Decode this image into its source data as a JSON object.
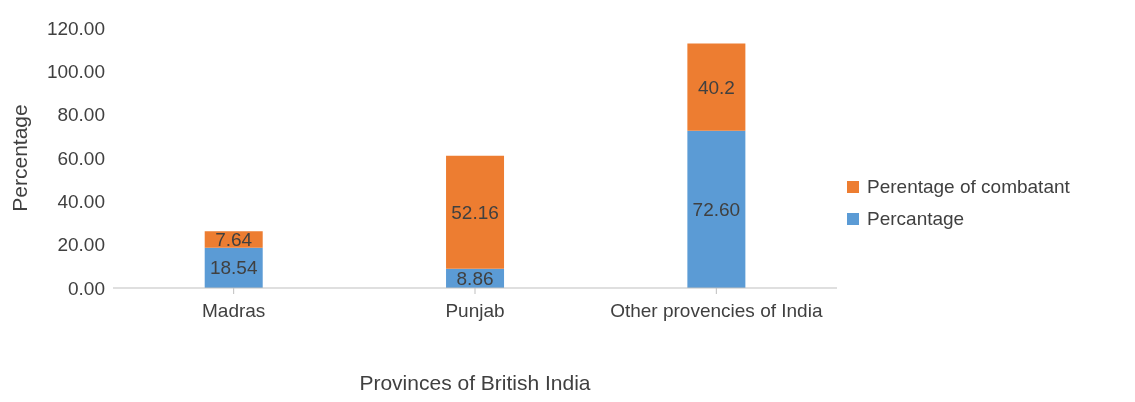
{
  "chart_data": {
    "type": "bar",
    "stacked": true,
    "xlabel": "Provinces of British India",
    "ylabel": "Percentage",
    "categories": [
      "Madras",
      "Punjab",
      "Other provencies of India"
    ],
    "series": [
      {
        "name": "Percantage",
        "color": "#5b9bd5",
        "values": [
          18.54,
          8.86,
          72.6
        ],
        "value_labels": [
          "18.54",
          "8.86",
          "72.60"
        ]
      },
      {
        "name": "Perentage of combatant",
        "color": "#ed7d31",
        "values": [
          7.64,
          52.16,
          40.2
        ],
        "value_labels": [
          "7.64",
          "52.16",
          "40.2"
        ]
      }
    ],
    "ylim": [
      0,
      120
    ],
    "yticks": [
      {
        "value": 0,
        "label": "0.00"
      },
      {
        "value": 20,
        "label": "20.00"
      },
      {
        "value": 40,
        "label": "40.00"
      },
      {
        "value": 60,
        "label": "60.00"
      },
      {
        "value": 80,
        "label": "80.00"
      },
      {
        "value": 100,
        "label": "100.00"
      },
      {
        "value": 120,
        "label": "120.00"
      }
    ],
    "grid": false,
    "legend": "right"
  }
}
